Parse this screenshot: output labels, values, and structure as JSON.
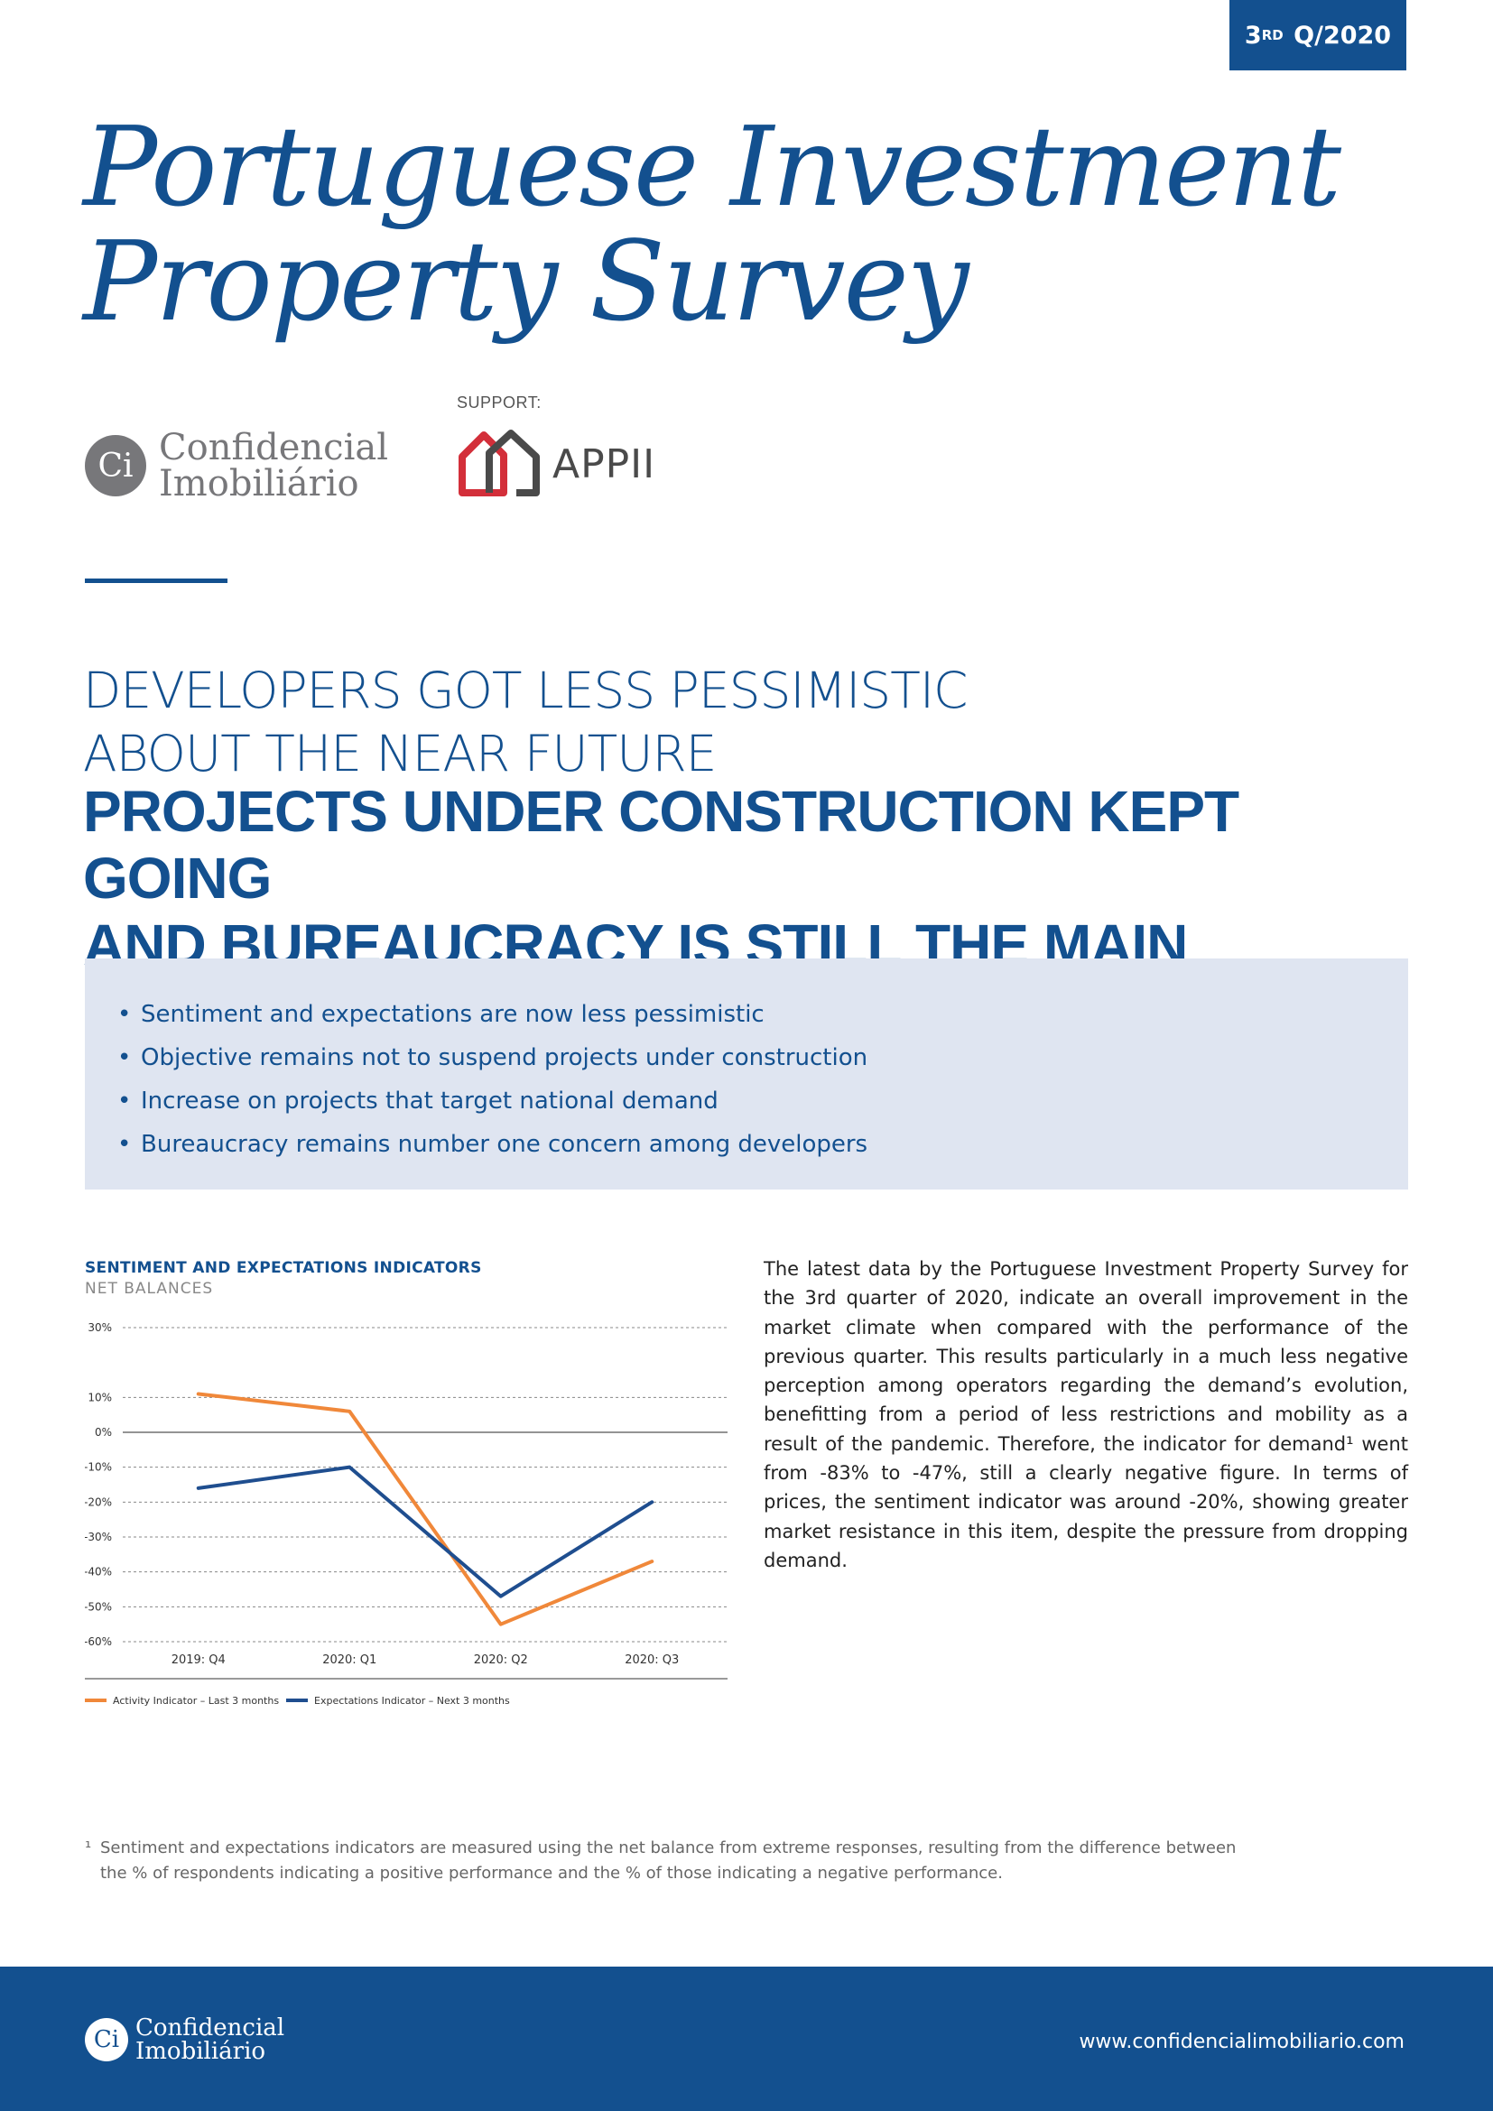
{
  "badge": {
    "ordinal": "3",
    "suffix": "RD",
    "period": "Q/2020"
  },
  "title": {
    "line1": "Portuguese Investment",
    "line2": "Property Survey"
  },
  "logos": {
    "ci_initials": "Ci",
    "ci_line1": "Confidencial",
    "ci_line2": "Imobiliário",
    "support_label": "SUPPORT:",
    "appii_name": "APPII",
    "appii_colors": {
      "left": "#d32f3a",
      "right": "#4a4a4a"
    }
  },
  "headline": {
    "sub_line1": "DEVELOPERS GOT LESS PESSIMISTIC",
    "sub_line2": "ABOUT THE NEAR FUTURE",
    "main_line1": "PROJECTS UNDER CONSTRUCTION KEPT GOING",
    "main_line2": "AND BUREAUCRACY IS STILL THE MAIN OBSTACLE"
  },
  "highlights": [
    "Sentiment and expectations are now less pessimistic",
    "Objective remains not to suspend projects under construction",
    "Increase on projects that target national demand",
    "Bureaucracy remains number one concern among developers"
  ],
  "chart_data": {
    "type": "line",
    "title": "SENTIMENT AND EXPECTATIONS INDICATORS",
    "subtitle": "NET BALANCES",
    "categories": [
      "2019: Q4",
      "2020: Q1",
      "2020: Q2",
      "2020: Q3"
    ],
    "series": [
      {
        "name": "Activity Indicator – Last 3 months",
        "color": "#f0883a",
        "values": [
          11,
          6,
          -55,
          -37
        ]
      },
      {
        "name": "Expectations Indicator – Next 3 months",
        "color": "#1f4e8f",
        "values": [
          -16,
          -10,
          -47,
          -20
        ]
      }
    ],
    "yticks": [
      30,
      10,
      0,
      -10,
      -20,
      -30,
      -40,
      -50,
      -60
    ],
    "ylim": [
      -60,
      30
    ],
    "grid": true,
    "legend": "bottom-left"
  },
  "body_text": "The latest data by the Portuguese Investment Property Survey for the 3rd quarter of 2020, indicate an overall improvement in the market climate when compared with the performance of the previous quarter. This results particularly in a much less negative perception among operators regarding the demand’s evolution, benefitting from a period of less restrictions and mobility as a result of the pandemic. Therefore, the indicator for demand¹ went from -83% to -47%, still a clearly negative figure. In terms of prices, the sentiment indicator was around -20%, showing greater market resistance in this item, despite the pressure from dropping demand.",
  "footnote": {
    "marker": "¹",
    "text": "Sentiment and expectations indicators are measured using the net balance from extreme responses, resulting from the difference between the % of respondents indicating a positive performance and the % of those indicating a negative performance."
  },
  "footer": {
    "ci_initials": "Ci",
    "ci_line1": "Confidencial",
    "ci_line2": "Imobiliário",
    "url": "www.confidencialimobiliario.com"
  }
}
